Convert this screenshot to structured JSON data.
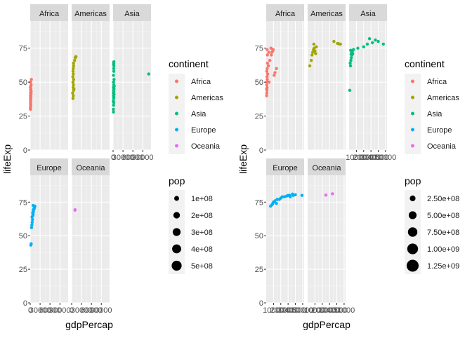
{
  "chart_data": [
    {
      "type": "scatter",
      "facet_by": "continent",
      "facets": [
        "Africa",
        "Americas",
        "Asia",
        "Europe",
        "Oceania"
      ],
      "xlabel": "gdpPercap",
      "ylabel": "lifeExp",
      "xlim": [
        0,
        115000
      ],
      "ylim": [
        0,
        95
      ],
      "x_ticks": [
        0,
        30000,
        60000,
        90000
      ],
      "x_tick_labels": [
        "0",
        "30000",
        "60000",
        "90000"
      ],
      "y_ticks": [
        0,
        25,
        50,
        75
      ],
      "grid": true,
      "size_domain": [
        0,
        560000000
      ],
      "legend_color": {
        "title": "continent",
        "entries": [
          {
            "label": "Africa",
            "color": "#F8766D"
          },
          {
            "label": "Americas",
            "color": "#A3A500"
          },
          {
            "label": "Asia",
            "color": "#00BF7D"
          },
          {
            "label": "Europe",
            "color": "#00B0F6"
          },
          {
            "label": "Oceania",
            "color": "#E76BF3"
          }
        ]
      },
      "legend_size": {
        "title": "pop",
        "entries": [
          {
            "label": "1e+08",
            "value": 100000000
          },
          {
            "label": "2e+08",
            "value": 200000000
          },
          {
            "label": "3e+08",
            "value": 300000000
          },
          {
            "label": "4e+08",
            "value": 400000000
          },
          {
            "label": "5e+08",
            "value": 500000000
          }
        ]
      },
      "points": {
        "Africa": [
          [
            1000,
            30
          ],
          [
            1200,
            32
          ],
          [
            800,
            34
          ],
          [
            1500,
            35
          ],
          [
            900,
            36
          ],
          [
            1800,
            37
          ],
          [
            600,
            38
          ],
          [
            1100,
            38
          ],
          [
            2200,
            39
          ],
          [
            700,
            40
          ],
          [
            1300,
            40
          ],
          [
            2500,
            41
          ],
          [
            900,
            42
          ],
          [
            1600,
            42
          ],
          [
            3000,
            43
          ],
          [
            1200,
            44
          ],
          [
            2000,
            45
          ],
          [
            800,
            46
          ],
          [
            1400,
            47
          ],
          [
            2800,
            48
          ],
          [
            1000,
            50
          ],
          [
            3500,
            52
          ],
          [
            600,
            31
          ],
          [
            1700,
            33
          ]
        ],
        "Americas": [
          [
            4000,
            38
          ],
          [
            5000,
            40
          ],
          [
            3000,
            42
          ],
          [
            6000,
            44
          ],
          [
            4500,
            46
          ],
          [
            5500,
            48
          ],
          [
            4000,
            50
          ],
          [
            6000,
            52
          ],
          [
            3500,
            54
          ],
          [
            5000,
            56
          ],
          [
            4200,
            58
          ],
          [
            4800,
            60
          ],
          [
            6000,
            62
          ],
          [
            5500,
            64
          ],
          [
            9000,
            66
          ],
          [
            11000,
            68
          ],
          [
            12000,
            68.5
          ],
          [
            13000,
            68.8
          ],
          [
            7000,
            45
          ]
        ],
        "Asia": [
          [
            1200,
            28
          ],
          [
            900,
            30
          ],
          [
            1500,
            33
          ],
          [
            2000,
            35
          ],
          [
            800,
            36
          ],
          [
            1800,
            38
          ],
          [
            2500,
            39
          ],
          [
            1200,
            40
          ],
          [
            3000,
            41
          ],
          [
            1000,
            42
          ],
          [
            2200,
            43
          ],
          [
            1500,
            44
          ],
          [
            2800,
            45
          ],
          [
            900,
            46
          ],
          [
            3500,
            47
          ],
          [
            2000,
            48
          ],
          [
            1300,
            50
          ],
          [
            2800,
            52
          ],
          [
            1100,
            55
          ],
          [
            2200,
            58
          ],
          [
            1800,
            60
          ],
          [
            2500,
            62
          ],
          [
            1600,
            63
          ],
          [
            2000,
            64
          ],
          [
            2400,
            65
          ],
          [
            108000,
            56
          ]
        ],
        "Europe": [
          [
            2000,
            43
          ],
          [
            3000,
            44
          ],
          [
            4000,
            56
          ],
          [
            5000,
            58
          ],
          [
            6000,
            60
          ],
          [
            7000,
            62
          ],
          [
            5500,
            64
          ],
          [
            8000,
            65
          ],
          [
            9000,
            66
          ],
          [
            7500,
            67
          ],
          [
            10000,
            68
          ],
          [
            9500,
            69
          ],
          [
            12000,
            70
          ],
          [
            11000,
            70
          ],
          [
            13000,
            71
          ],
          [
            14000,
            72
          ],
          [
            9000,
            72.5
          ]
        ],
        "Oceania": [
          [
            10000,
            69
          ],
          [
            10500,
            69.3
          ]
        ]
      }
    },
    {
      "type": "scatter",
      "facet_by": "continent",
      "facets": [
        "Africa",
        "Americas",
        "Asia",
        "Europe",
        "Oceania"
      ],
      "xlabel": "gdpPercap",
      "ylabel": "lifeExp",
      "xlim": [
        0,
        52000
      ],
      "ylim": [
        0,
        95
      ],
      "x_ticks": [
        10000,
        20000,
        30000,
        40000,
        50000
      ],
      "x_tick_labels": [
        "10000",
        "20000",
        "30000",
        "40000",
        "50000"
      ],
      "x_tick_labels_overlap": "10000200003000040000500000",
      "y_ticks": [
        0,
        25,
        50,
        75
      ],
      "grid": true,
      "size_domain": [
        0,
        1400000000
      ],
      "legend_color": {
        "title": "continent",
        "entries": [
          {
            "label": "Africa",
            "color": "#F8766D"
          },
          {
            "label": "Americas",
            "color": "#A3A500"
          },
          {
            "label": "Asia",
            "color": "#00BF7D"
          },
          {
            "label": "Europe",
            "color": "#00B0F6"
          },
          {
            "label": "Oceania",
            "color": "#E76BF3"
          }
        ]
      },
      "legend_size": {
        "title": "pop",
        "entries": [
          {
            "label": "2.50e+08",
            "value": 250000000
          },
          {
            "label": "5.00e+08",
            "value": 500000000
          },
          {
            "label": "7.50e+08",
            "value": 750000000
          },
          {
            "label": "1.00e+09",
            "value": 1000000000
          },
          {
            "label": "1.25e+09",
            "value": 1250000000
          }
        ]
      },
      "points": {
        "Africa": [
          [
            600,
            40
          ],
          [
            800,
            42
          ],
          [
            1000,
            44
          ],
          [
            1200,
            46
          ],
          [
            700,
            48
          ],
          [
            900,
            50
          ],
          [
            1500,
            52
          ],
          [
            1100,
            54
          ],
          [
            2000,
            56
          ],
          [
            800,
            58
          ],
          [
            1300,
            60
          ],
          [
            3000,
            62
          ],
          [
            1700,
            64
          ],
          [
            5000,
            66
          ],
          [
            4000,
            50
          ],
          [
            7000,
            70
          ],
          [
            8000,
            72
          ],
          [
            9000,
            73
          ],
          [
            6500,
            75
          ],
          [
            12000,
            57
          ],
          [
            14000,
            60
          ],
          [
            11000,
            55
          ],
          [
            600,
            45
          ],
          [
            1600,
            70
          ],
          [
            1200,
            74
          ],
          [
            3500,
            72
          ],
          [
            9500,
            74
          ]
        ],
        "Americas": [
          [
            3000,
            62
          ],
          [
            5000,
            66
          ],
          [
            6000,
            70
          ],
          [
            7000,
            72
          ],
          [
            8000,
            74
          ],
          [
            9000,
            75
          ],
          [
            10000,
            73
          ],
          [
            12000,
            76
          ],
          [
            8500,
            78
          ],
          [
            11000,
            71
          ],
          [
            36000,
            80
          ],
          [
            41000,
            78.5
          ],
          [
            43000,
            78.2
          ],
          [
            45000,
            78
          ]
        ],
        "Asia": [
          [
            1000,
            44
          ],
          [
            2000,
            62
          ],
          [
            1500,
            64
          ],
          [
            2500,
            66
          ],
          [
            3000,
            68
          ],
          [
            4000,
            70
          ],
          [
            5000,
            71
          ],
          [
            3500,
            72
          ],
          [
            4500,
            73
          ],
          [
            2200,
            73.5
          ],
          [
            2800,
            70.5
          ],
          [
            6000,
            74
          ],
          [
            12000,
            75
          ],
          [
            20000,
            76
          ],
          [
            25000,
            78
          ],
          [
            32000,
            79
          ],
          [
            28000,
            82
          ],
          [
            40000,
            80
          ],
          [
            47000,
            78
          ],
          [
            36000,
            81
          ]
        ],
        "Europe": [
          [
            6000,
            72
          ],
          [
            8000,
            73
          ],
          [
            9000,
            74
          ],
          [
            10000,
            75
          ],
          [
            12000,
            76
          ],
          [
            14000,
            74
          ],
          [
            15000,
            77
          ],
          [
            18000,
            77
          ],
          [
            20000,
            78
          ],
          [
            22000,
            79
          ],
          [
            25000,
            79
          ],
          [
            28000,
            79.5
          ],
          [
            30000,
            80
          ],
          [
            32000,
            80
          ],
          [
            33000,
            79
          ],
          [
            36000,
            81
          ],
          [
            37000,
            80
          ],
          [
            40000,
            80.5
          ],
          [
            49000,
            80
          ]
        ],
        "Oceania": [
          [
            25000,
            80.2
          ],
          [
            34000,
            81.2
          ]
        ]
      }
    }
  ]
}
